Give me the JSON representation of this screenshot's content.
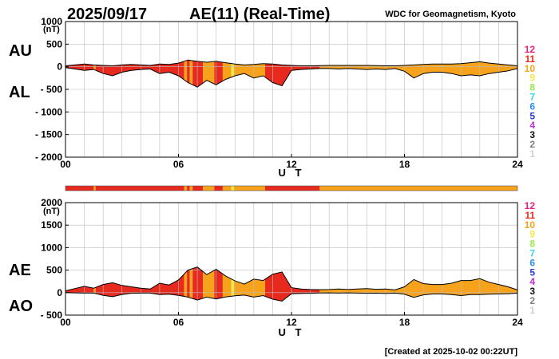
{
  "header": {
    "date": "2025/09/17",
    "title": "AE(11) (Real-Time)",
    "source": "WDC for Geomagnetism, Kyoto"
  },
  "footer": {
    "created": "[Created at 2025-10-02 00:22UT]"
  },
  "level_legend": {
    "levels": [
      {
        "label": "12",
        "color": "#e8207a"
      },
      {
        "label": "11",
        "color": "#e82a1e"
      },
      {
        "label": "10",
        "color": "#f7a21b"
      },
      {
        "label": "9",
        "color": "#f3e84a"
      },
      {
        "label": "8",
        "color": "#9be64a"
      },
      {
        "label": "7",
        "color": "#38d6e0"
      },
      {
        "label": "6",
        "color": "#2a8ef0"
      },
      {
        "label": "5",
        "color": "#2a3ad8"
      },
      {
        "label": "4",
        "color": "#c22ee0"
      },
      {
        "label": "3",
        "color": "#111111"
      },
      {
        "label": "2",
        "color": "#808080"
      },
      {
        "label": "1",
        "color": "#d0d0d0"
      }
    ]
  },
  "chart_data": [
    {
      "type": "area",
      "panel": "AU/AL",
      "series_labels": [
        "AU",
        "AL"
      ],
      "yunit": "(nT)",
      "xlabel": "U T",
      "ylim": [
        -2000,
        1000
      ],
      "yticks": [
        "1000",
        "500",
        "0",
        "- 500",
        "- 1000",
        "- 1500",
        "- 2000"
      ],
      "ytick_values": [
        1000,
        500,
        0,
        -500,
        -1000,
        -1500,
        -2000
      ],
      "xlim": [
        0,
        24
      ],
      "xticks": [
        "00",
        "06",
        "12",
        "18",
        "24"
      ],
      "xtick_values": [
        0,
        6,
        12,
        18,
        24
      ],
      "grid": true,
      "x": [
        0,
        0.5,
        1,
        1.5,
        2,
        2.5,
        3,
        3.5,
        4,
        4.5,
        5,
        5.5,
        6,
        6.5,
        7,
        7.5,
        8,
        8.5,
        9,
        9.5,
        10,
        10.5,
        11,
        11.5,
        12,
        12.5,
        13,
        13.5,
        14,
        14.5,
        15,
        15.5,
        16,
        16.5,
        17,
        17.5,
        18,
        18.5,
        19,
        19.5,
        20,
        20.5,
        21,
        21.5,
        22,
        22.5,
        23,
        23.5,
        24
      ],
      "au": [
        20,
        40,
        60,
        40,
        30,
        20,
        40,
        50,
        40,
        30,
        60,
        50,
        80,
        150,
        120,
        100,
        120,
        90,
        60,
        40,
        50,
        70,
        60,
        40,
        30,
        20,
        20,
        25,
        30,
        30,
        30,
        30,
        30,
        25,
        20,
        20,
        30,
        40,
        50,
        60,
        60,
        60,
        70,
        90,
        110,
        80,
        60,
        40,
        20
      ],
      "al": [
        -20,
        -50,
        -80,
        -60,
        -150,
        -200,
        -120,
        -80,
        -60,
        -50,
        -150,
        -120,
        -200,
        -350,
        -450,
        -300,
        -400,
        -280,
        -200,
        -150,
        -250,
        -200,
        -350,
        -420,
        -80,
        -60,
        -50,
        -40,
        -40,
        -50,
        -40,
        -50,
        -60,
        -50,
        -60,
        -40,
        -100,
        -250,
        -150,
        -120,
        -120,
        -150,
        -200,
        -180,
        -200,
        -150,
        -120,
        -90,
        -40
      ],
      "activity_levels": [
        {
          "start": 0,
          "end": 1.5,
          "level": 11
        },
        {
          "start": 1.5,
          "end": 1.6,
          "level": 10
        },
        {
          "start": 1.6,
          "end": 6.3,
          "level": 11
        },
        {
          "start": 6.3,
          "end": 6.45,
          "level": 10
        },
        {
          "start": 6.45,
          "end": 6.6,
          "level": 11
        },
        {
          "start": 6.6,
          "end": 6.75,
          "level": 10
        },
        {
          "start": 6.75,
          "end": 7.3,
          "level": 11
        },
        {
          "start": 7.3,
          "end": 7.9,
          "level": 10
        },
        {
          "start": 7.9,
          "end": 8.35,
          "level": 11
        },
        {
          "start": 8.35,
          "end": 8.8,
          "level": 10
        },
        {
          "start": 8.8,
          "end": 8.95,
          "level": 9
        },
        {
          "start": 8.95,
          "end": 10.6,
          "level": 10
        },
        {
          "start": 10.6,
          "end": 13.5,
          "level": 11
        },
        {
          "start": 13.5,
          "end": 24,
          "level": 10
        }
      ]
    },
    {
      "type": "area",
      "panel": "AE/AO",
      "series_labels": [
        "AE",
        "AO"
      ],
      "yunit": "(nT)",
      "xlabel": "U T",
      "ylim": [
        -500,
        2000
      ],
      "yticks": [
        "2000",
        "1500",
        "1000",
        "500",
        "0",
        "- 500"
      ],
      "ytick_values": [
        2000,
        1500,
        1000,
        500,
        0,
        -500
      ],
      "xlim": [
        0,
        24
      ],
      "xticks": [
        "00",
        "06",
        "12",
        "18",
        "24"
      ],
      "xtick_values": [
        0,
        6,
        12,
        18,
        24
      ],
      "grid": true,
      "x": [
        0,
        0.5,
        1,
        1.5,
        2,
        2.5,
        3,
        3.5,
        4,
        4.5,
        5,
        5.5,
        6,
        6.5,
        7,
        7.5,
        8,
        8.5,
        9,
        9.5,
        10,
        10.5,
        11,
        11.5,
        12,
        12.5,
        13,
        13.5,
        14,
        14.5,
        15,
        15.5,
        16,
        16.5,
        17,
        17.5,
        18,
        18.5,
        19,
        19.5,
        20,
        20.5,
        21,
        21.5,
        22,
        22.5,
        23,
        23.5,
        24
      ],
      "ae": [
        40,
        90,
        140,
        100,
        180,
        220,
        160,
        130,
        100,
        80,
        210,
        170,
        280,
        500,
        570,
        400,
        520,
        370,
        260,
        190,
        300,
        270,
        410,
        460,
        110,
        80,
        70,
        65,
        70,
        80,
        70,
        80,
        90,
        75,
        80,
        60,
        130,
        290,
        200,
        180,
        180,
        210,
        270,
        270,
        310,
        230,
        180,
        130,
        60
      ],
      "ao": [
        0,
        -5,
        -10,
        -10,
        -60,
        -90,
        -40,
        -15,
        -10,
        -10,
        -45,
        -35,
        -60,
        -100,
        -165,
        -100,
        -140,
        -95,
        -70,
        -55,
        -100,
        -65,
        -145,
        -190,
        -25,
        -20,
        -15,
        -8,
        -5,
        -10,
        -5,
        -10,
        -15,
        -12,
        -20,
        -10,
        -35,
        -105,
        -50,
        -30,
        -30,
        -45,
        -65,
        -45,
        -45,
        -35,
        -30,
        -25,
        -10
      ]
    }
  ]
}
